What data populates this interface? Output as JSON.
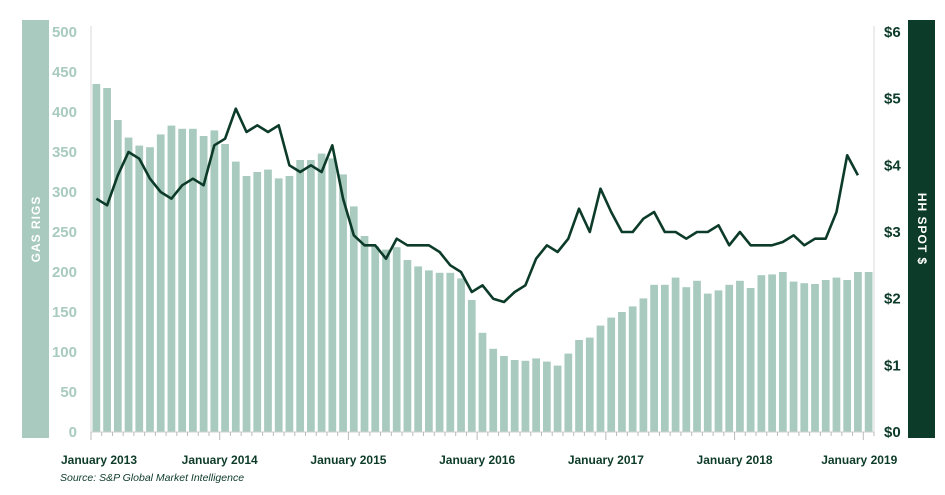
{
  "chart_data": {
    "type": "bar+line",
    "y_left": {
      "label": "GAS RIGS",
      "range": [
        0,
        500
      ],
      "ticks": [
        "500",
        "450",
        "400",
        "350",
        "300",
        "250",
        "200",
        "150",
        "100",
        "50",
        "0"
      ]
    },
    "y_right": {
      "label": "HH SPOT $",
      "range": [
        0,
        6
      ],
      "ticks": [
        "$6",
        "$5",
        "$4",
        "$3",
        "$2",
        "$1",
        "$0"
      ]
    },
    "x_ticks": [
      "January 2013",
      "January 2014",
      "January 2015",
      "January 2016",
      "January 2017",
      "January 2018",
      "January 2019"
    ],
    "x_range": [
      "2013-01",
      "2019-01"
    ],
    "series": [
      {
        "kind": "bar",
        "axis": "left",
        "color": "#a8cabf",
        "x": [
          "2013-01",
          "2013-02",
          "2013-03",
          "2013-04",
          "2013-05",
          "2013-06",
          "2013-07",
          "2013-08",
          "2013-09",
          "2013-10",
          "2013-11",
          "2013-12",
          "2014-01",
          "2014-02",
          "2014-03",
          "2014-04",
          "2014-05",
          "2014-06",
          "2014-07",
          "2014-08",
          "2014-09",
          "2014-10",
          "2014-11",
          "2014-12",
          "2015-01",
          "2015-02",
          "2015-03",
          "2015-04",
          "2015-05",
          "2015-06",
          "2015-07",
          "2015-08",
          "2015-09",
          "2015-10",
          "2015-11",
          "2015-12",
          "2016-01",
          "2016-02",
          "2016-03",
          "2016-04",
          "2016-05",
          "2016-06",
          "2016-07",
          "2016-08",
          "2016-09",
          "2016-10",
          "2016-11",
          "2016-12",
          "2017-01",
          "2017-02",
          "2017-03",
          "2017-04",
          "2017-05",
          "2017-06",
          "2017-07",
          "2017-08",
          "2017-09",
          "2017-10",
          "2017-11",
          "2017-12",
          "2018-01",
          "2018-02",
          "2018-03",
          "2018-04",
          "2018-05",
          "2018-06",
          "2018-07",
          "2018-08",
          "2018-09",
          "2018-10",
          "2018-11",
          "2018-12",
          "2019-01"
        ],
        "values": [
          435,
          430,
          390,
          368,
          358,
          356,
          372,
          383,
          379,
          379,
          370,
          377,
          360,
          338,
          320,
          325,
          328,
          317,
          320,
          340,
          340,
          348,
          342,
          322,
          282,
          245,
          232,
          228,
          231,
          215,
          207,
          202,
          199,
          199,
          192,
          165,
          124,
          104,
          95,
          90,
          89,
          92,
          88,
          83,
          98,
          115,
          118,
          133,
          143,
          150,
          157,
          167,
          184,
          184,
          193,
          181,
          189,
          173,
          177,
          184,
          189,
          180,
          196,
          197,
          200,
          188,
          186,
          185,
          190,
          193,
          190,
          200,
          200
        ]
      },
      {
        "kind": "line",
        "axis": "right",
        "color": "#0d3b29",
        "x": [
          "2013-01",
          "2013-02",
          "2013-03",
          "2013-04",
          "2013-05",
          "2013-06",
          "2013-07",
          "2013-08",
          "2013-09",
          "2013-10",
          "2013-11",
          "2013-12",
          "2014-01",
          "2014-02",
          "2014-03",
          "2014-04",
          "2014-05",
          "2014-06",
          "2014-07",
          "2014-08",
          "2014-09",
          "2014-10",
          "2014-11",
          "2014-12",
          "2015-01",
          "2015-02",
          "2015-03",
          "2015-04",
          "2015-05",
          "2015-06",
          "2015-07",
          "2015-08",
          "2015-09",
          "2015-10",
          "2015-11",
          "2015-12",
          "2016-01",
          "2016-02",
          "2016-03",
          "2016-04",
          "2016-05",
          "2016-06",
          "2016-07",
          "2016-08",
          "2016-09",
          "2016-10",
          "2016-11",
          "2016-12",
          "2017-01",
          "2017-02",
          "2017-03",
          "2017-04",
          "2017-05",
          "2017-06",
          "2017-07",
          "2017-08",
          "2017-09",
          "2017-10",
          "2017-11",
          "2017-12",
          "2018-01",
          "2018-02",
          "2018-03",
          "2018-04",
          "2018-05",
          "2018-06",
          "2018-07",
          "2018-08",
          "2018-09",
          "2018-10",
          "2018-11",
          "2018-12",
          "2019-01"
        ],
        "values": [
          3.5,
          3.4,
          3.85,
          4.2,
          4.1,
          3.8,
          3.6,
          3.5,
          3.7,
          3.8,
          3.7,
          4.3,
          4.4,
          4.85,
          4.5,
          4.6,
          4.5,
          4.6,
          4.0,
          3.9,
          4.0,
          3.9,
          4.3,
          3.5,
          2.95,
          2.8,
          2.8,
          2.6,
          2.9,
          2.8,
          2.8,
          2.8,
          2.7,
          2.5,
          2.4,
          2.1,
          2.2,
          2.0,
          1.95,
          2.1,
          2.2,
          2.6,
          2.8,
          2.7,
          2.9,
          3.35,
          3.0,
          3.65,
          3.3,
          3.0,
          3.0,
          3.2,
          3.3,
          3.0,
          3.0,
          2.9,
          3.0,
          3.0,
          3.1,
          2.8,
          3.0,
          2.8,
          2.8,
          2.8,
          2.85,
          2.95,
          2.8,
          2.9,
          2.9,
          3.3,
          4.15,
          3.85,
          null
        ]
      }
    ]
  },
  "source": "Source: S&P Global Market Intelligence"
}
